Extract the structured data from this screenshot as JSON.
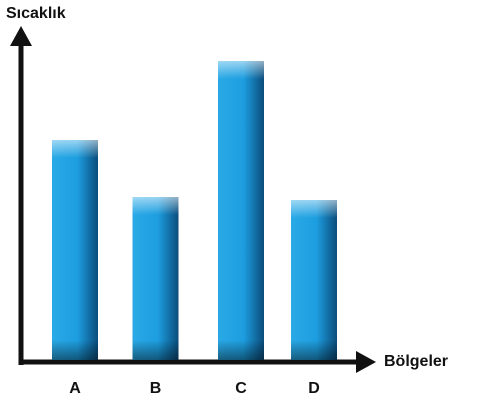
{
  "chart_data": {
    "type": "bar",
    "y_label": "Sıcaklık",
    "x_label": "Bölgeler",
    "categories": [
      "A",
      "B",
      "C",
      "D"
    ],
    "values": [
      220,
      163,
      299,
      160
    ],
    "color": "#1e9fe0",
    "ylim": [
      0,
      320
    ]
  }
}
